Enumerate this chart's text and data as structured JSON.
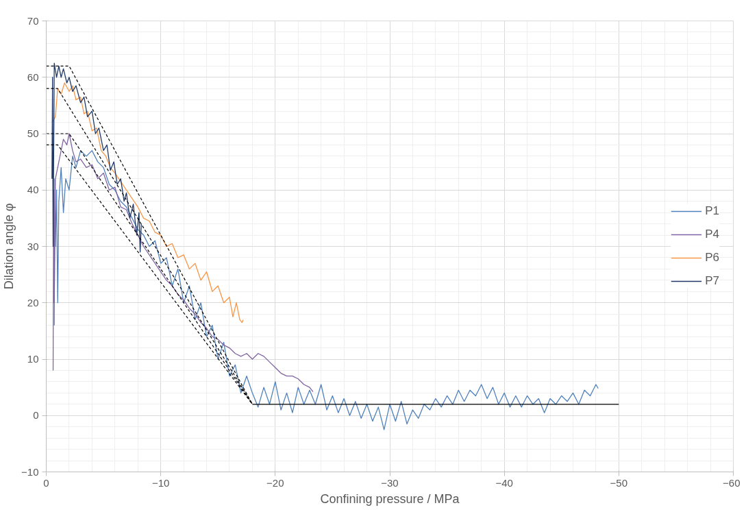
{
  "chart_data": {
    "type": "line",
    "xlabel": "Confining pressure / MPa",
    "ylabel": "Dilation angle φ",
    "xlim": [
      0,
      -60
    ],
    "xticks": [
      0,
      -10,
      -20,
      -30,
      -40,
      -50,
      -60
    ],
    "ylim": [
      -10,
      70
    ],
    "yticks": [
      -10,
      0,
      10,
      20,
      30,
      40,
      50,
      60,
      70
    ],
    "grid": true,
    "legend": "right",
    "line_style": "solid",
    "marker": "none",
    "series": [
      {
        "name": "P1",
        "color": "#4f81bd",
        "x": [
          -0.7,
          -0.75,
          -0.8,
          -0.9,
          -1,
          -1.1,
          -1.3,
          -1.5,
          -1.7,
          -2,
          -2.3,
          -2.6,
          -3,
          -3.5,
          -4,
          -4.5,
          -5,
          -5.5,
          -6,
          -6.5,
          -7,
          -7.5,
          -8,
          -8.5,
          -9,
          -9.5,
          -10,
          -10.5,
          -11,
          -11.5,
          -12,
          -12.5,
          -13,
          -13.5,
          -14,
          -14.5,
          -15,
          -15.5,
          -16,
          -16.5,
          -17,
          -17.5,
          -18,
          -18.5,
          -19,
          -19.5,
          -20,
          -20.5,
          -21,
          -21.5,
          -22,
          -22.5,
          -23,
          -23.5,
          -24,
          -24.5,
          -25,
          -25.5,
          -26,
          -26.5,
          -27,
          -27.5,
          -28,
          -28.5,
          -29,
          -29.5,
          -30,
          -30.5,
          -31,
          -31.5,
          -32,
          -32.5,
          -33,
          -33.5,
          -34,
          -34.5,
          -35,
          -35.5,
          -36,
          -36.5,
          -37,
          -37.5,
          -38,
          -38.5,
          -39,
          -39.5,
          -40,
          -40.5,
          -41,
          -41.5,
          -42,
          -42.5,
          -43,
          -43.5,
          -44,
          -44.5,
          -45,
          -45.5,
          -46,
          -46.5,
          -47,
          -47.5,
          -48,
          -48.2
        ],
        "values": [
          16,
          42,
          30,
          40,
          20,
          38,
          44,
          36,
          42,
          40,
          46,
          44,
          47,
          46,
          47,
          45,
          44,
          41,
          40,
          38,
          37,
          35,
          33,
          32,
          30,
          31,
          27,
          28,
          23,
          26,
          20,
          23,
          17,
          20,
          14,
          16,
          10,
          13,
          7,
          9,
          4,
          7,
          4,
          1.5,
          5,
          2,
          6,
          1,
          4,
          0.5,
          5,
          2,
          4.5,
          2,
          5.5,
          1,
          3.5,
          0.5,
          3,
          0,
          2.5,
          -0.5,
          2,
          -1,
          1.5,
          -2.5,
          2,
          -1,
          2.5,
          -1.5,
          1,
          -0.5,
          2,
          1,
          3,
          1.5,
          3.5,
          2,
          4.5,
          2.5,
          4.5,
          3.5,
          5.5,
          3,
          5,
          2,
          4,
          1.5,
          3.5,
          1.5,
          3.5,
          2,
          3,
          0.5,
          3,
          2,
          3.5,
          2.5,
          4,
          2,
          4.5,
          3.5,
          5.5,
          4.8
        ]
      },
      {
        "name": "P4",
        "color": "#8064a2",
        "x": [
          -0.6,
          -0.65,
          -0.7,
          -0.8,
          -1,
          -1.2,
          -1.5,
          -1.8,
          -2,
          -2.3,
          -2.6,
          -3,
          -3.5,
          -4,
          -4.5,
          -5,
          -5.5,
          -6,
          -6.5,
          -7,
          -7.5,
          -8,
          -8.5,
          -9,
          -9.5,
          -10,
          -10.5,
          -11,
          -11.5,
          -12,
          -12.5,
          -13,
          -13.5,
          -14,
          -14.5,
          -15,
          -15.5,
          -16,
          -16.5,
          -17,
          -17.5,
          -18,
          -18.5,
          -19,
          -19.5,
          -20,
          -20.5,
          -21,
          -21.5,
          -22,
          -22.5,
          -23,
          -23.3
        ],
        "values": [
          8,
          40,
          20,
          42,
          44,
          46,
          49,
          48,
          50,
          47,
          45,
          45.5,
          44,
          44.5,
          42,
          43,
          40,
          40.5,
          37,
          36.5,
          34,
          32,
          30,
          28.5,
          27,
          25.5,
          24,
          23,
          21.5,
          20.5,
          19,
          18,
          16.5,
          15.5,
          14,
          13.5,
          12.5,
          12,
          11,
          10.5,
          11,
          10,
          11,
          10.5,
          9.5,
          8.5,
          7.5,
          7,
          7,
          6.5,
          5.5,
          5,
          4.2
        ]
      },
      {
        "name": "P6",
        "color": "#f79646",
        "x": [
          -0.5,
          -0.8,
          -1,
          -1.3,
          -1.6,
          -2,
          -2.3,
          -2.6,
          -3,
          -3.3,
          -3.6,
          -4,
          -4.4,
          -4.8,
          -5.2,
          -5.6,
          -6,
          -6.5,
          -7,
          -7.5,
          -8,
          -8.5,
          -9,
          -9.5,
          -10,
          -10.5,
          -11,
          -11.5,
          -12,
          -12.5,
          -13,
          -13.5,
          -14,
          -14.5,
          -15,
          -15.5,
          -16,
          -16.3,
          -16.6,
          -16.9,
          -17.1,
          -17.2
        ],
        "values": [
          52,
          53,
          58,
          57,
          59,
          57.5,
          58.5,
          56,
          56.5,
          53.5,
          54,
          50.5,
          51,
          47,
          46,
          44,
          43,
          41.5,
          40,
          38.5,
          37,
          35,
          34.5,
          32.5,
          32,
          30,
          30.5,
          28,
          28.5,
          26,
          27,
          24,
          25.5,
          22,
          23,
          20,
          21,
          17.5,
          20,
          17,
          16.5,
          17
        ]
      },
      {
        "name": "P7",
        "color": "#1f3864",
        "x": [
          -0.5,
          -0.55,
          -0.6,
          -0.7,
          -0.9,
          -1.1,
          -1.3,
          -1.5,
          -1.8,
          -2,
          -2.3,
          -2.6,
          -3,
          -3.3,
          -3.6,
          -4,
          -4.3,
          -4.6,
          -5,
          -5.3,
          -5.6,
          -5.9,
          -6.2,
          -6.5,
          -6.8,
          -7,
          -7.3,
          -7.6,
          -7.9,
          -8.1,
          -8.2,
          -8.3
        ],
        "values": [
          42,
          60,
          30,
          62.5,
          60,
          62,
          60,
          61.5,
          59,
          60,
          57.5,
          58.5,
          55.5,
          56.5,
          53,
          54,
          50,
          51,
          47,
          48,
          43.5,
          45,
          41,
          42,
          38,
          39.5,
          35,
          37.5,
          32,
          36,
          29,
          34
        ]
      },
      {
        "color": "#000000",
        "line_style": "dashed",
        "x": [
          0,
          -2,
          -18
        ],
        "values": [
          62,
          62,
          2
        ]
      },
      {
        "color": "#000000",
        "line_style": "dashed",
        "x": [
          0,
          -1,
          -18
        ],
        "values": [
          58,
          58,
          2
        ]
      },
      {
        "color": "#000000",
        "line_style": "dashed",
        "x": [
          0,
          -2,
          -18
        ],
        "values": [
          50,
          50,
          2
        ]
      },
      {
        "color": "#000000",
        "line_style": "dashed",
        "x": [
          0,
          -1,
          -18
        ],
        "values": [
          48,
          48,
          2
        ]
      },
      {
        "color": "#000000",
        "line_style": "solid",
        "x": [
          -18,
          -50
        ],
        "values": [
          2,
          2
        ]
      }
    ]
  }
}
